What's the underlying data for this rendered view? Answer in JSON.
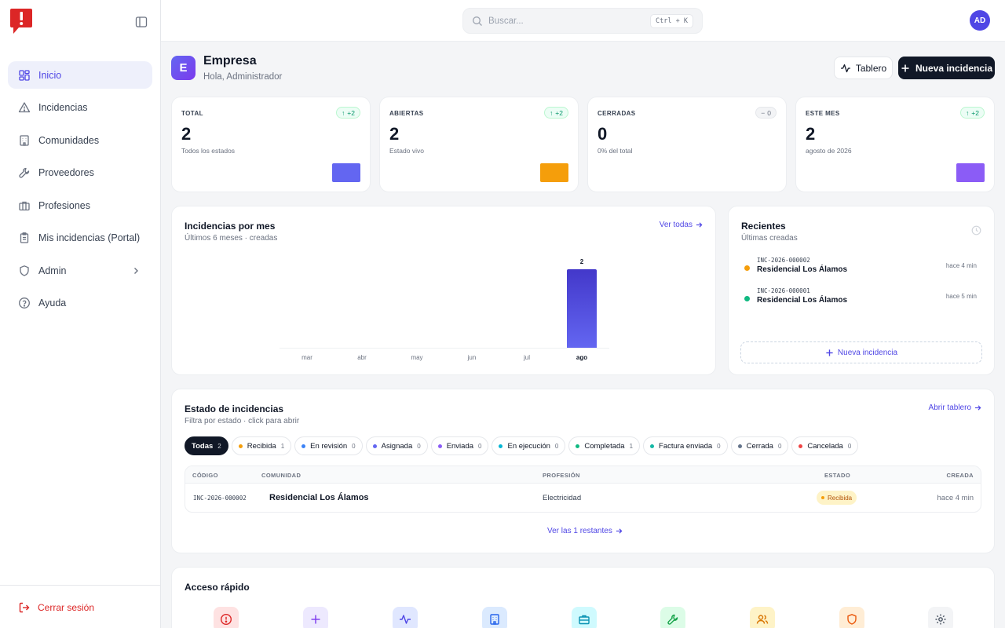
{
  "app": {
    "logo": "app-logo",
    "collapse_icon": "sidebar-toggle-icon"
  },
  "sidebar": {
    "items": [
      {
        "label": "Inicio",
        "icon": "grid-icon",
        "active": true
      },
      {
        "label": "Incidencias",
        "icon": "warning-icon"
      },
      {
        "label": "Comunidades",
        "icon": "building-icon"
      },
      {
        "label": "Proveedores",
        "icon": "wrench-icon"
      },
      {
        "label": "Profesiones",
        "icon": "briefcase-icon"
      },
      {
        "label": "Mis incidencias (Portal)",
        "icon": "clipboard-icon"
      },
      {
        "label": "Admin",
        "icon": "shield-icon",
        "expandable": true
      },
      {
        "label": "Ayuda",
        "icon": "help-icon"
      }
    ],
    "logout": "Cerrar sesión"
  },
  "topbar": {
    "search_placeholder": "Buscar...",
    "shortcut": "Ctrl + K",
    "avatar": "AD"
  },
  "header": {
    "initial": "E",
    "company": "Empresa",
    "greeting": "Hola, Administrador",
    "board_label": "Tablero",
    "new_label": "Nueva incidencia"
  },
  "stats": [
    {
      "label": "TOTAL",
      "value": "2",
      "sub": "Todos los estados",
      "badge": "+2",
      "trend": "up",
      "color": "#6366f1"
    },
    {
      "label": "ABIERTAS",
      "value": "2",
      "sub": "Estado vivo",
      "badge": "+2",
      "trend": "up",
      "color": "#f59e0b"
    },
    {
      "label": "CERRADAS",
      "value": "0",
      "sub": "0% del total",
      "badge": "0",
      "trend": "flat",
      "color": "#ffffff"
    },
    {
      "label": "ESTE MES",
      "value": "2",
      "sub": "agosto de 2026",
      "badge": "+2",
      "trend": "up",
      "color": "#8b5cf6"
    }
  ],
  "monthly": {
    "title": "Incidencias por mes",
    "subtitle": "Últimos 6 meses · creadas",
    "link": "Ver todas"
  },
  "chart_data": {
    "type": "bar",
    "categories": [
      "mar",
      "abr",
      "may",
      "jun",
      "jul",
      "ago"
    ],
    "values": [
      0,
      0,
      0,
      0,
      0,
      2
    ],
    "highlight": "ago",
    "data_labels": [
      null,
      null,
      null,
      null,
      null,
      "2"
    ],
    "color": "#4f46e5"
  },
  "recent": {
    "title": "Recientes",
    "subtitle": "Últimas creadas",
    "icon": "clock-icon",
    "items": [
      {
        "code": "INC-2026-000002",
        "name": "Residencial Los Álamos",
        "time": "hace 4 min",
        "color": "#f59e0b"
      },
      {
        "code": "INC-2026-000001",
        "name": "Residencial Los Álamos",
        "time": "hace 5 min",
        "color": "#10b981"
      }
    ],
    "new_label": "Nueva incidencia"
  },
  "states": {
    "title": "Estado de incidencias",
    "subtitle": "Filtra por estado · click para abrir",
    "link": "Abrir tablero",
    "chips": [
      {
        "label": "Todas",
        "count": "2",
        "active": true
      },
      {
        "label": "Recibida",
        "count": "1",
        "color": "#f59e0b"
      },
      {
        "label": "En revisión",
        "count": "0",
        "color": "#3b82f6"
      },
      {
        "label": "Asignada",
        "count": "0",
        "color": "#6366f1"
      },
      {
        "label": "Enviada",
        "count": "0",
        "color": "#8b5cf6"
      },
      {
        "label": "En ejecución",
        "count": "0",
        "color": "#06b6d4"
      },
      {
        "label": "Completada",
        "count": "1",
        "color": "#10b981"
      },
      {
        "label": "Factura enviada",
        "count": "0",
        "color": "#14b8a6"
      },
      {
        "label": "Cerrada",
        "count": "0",
        "color": "#64748b"
      },
      {
        "label": "Cancelada",
        "count": "0",
        "color": "#ef4444"
      }
    ],
    "columns": [
      "CÓDIGO",
      "COMUNIDAD",
      "PROFESIÓN",
      "ESTADO",
      "CREADA"
    ],
    "rows": [
      {
        "code": "INC-2026-000002",
        "community": "Residencial Los Álamos",
        "profession": "Electricidad",
        "status": "Recibida",
        "created": "hace 4 min"
      }
    ],
    "more": "Ver las 1 restantes"
  },
  "quick": {
    "title": "Acceso rápido",
    "items": [
      {
        "icon": "alert-icon",
        "bg": "#fee2e2",
        "color": "#dc2626"
      },
      {
        "icon": "plus-icon",
        "bg": "#ede9fe",
        "color": "#7c3aed"
      },
      {
        "icon": "activity-icon",
        "bg": "#e0e7ff",
        "color": "#4f46e5"
      },
      {
        "icon": "building-icon",
        "bg": "#dbeafe",
        "color": "#2563eb"
      },
      {
        "icon": "briefcase-icon",
        "bg": "#cffafe",
        "color": "#0891b2"
      },
      {
        "icon": "wrench-icon",
        "bg": "#dcfce7",
        "color": "#16a34a"
      },
      {
        "icon": "users-icon",
        "bg": "#fef3c7",
        "color": "#d97706"
      },
      {
        "icon": "shield-icon",
        "bg": "#ffedd5",
        "color": "#ea580c"
      },
      {
        "icon": "gear-icon",
        "bg": "#f3f4f6",
        "color": "#4b5563"
      }
    ]
  }
}
